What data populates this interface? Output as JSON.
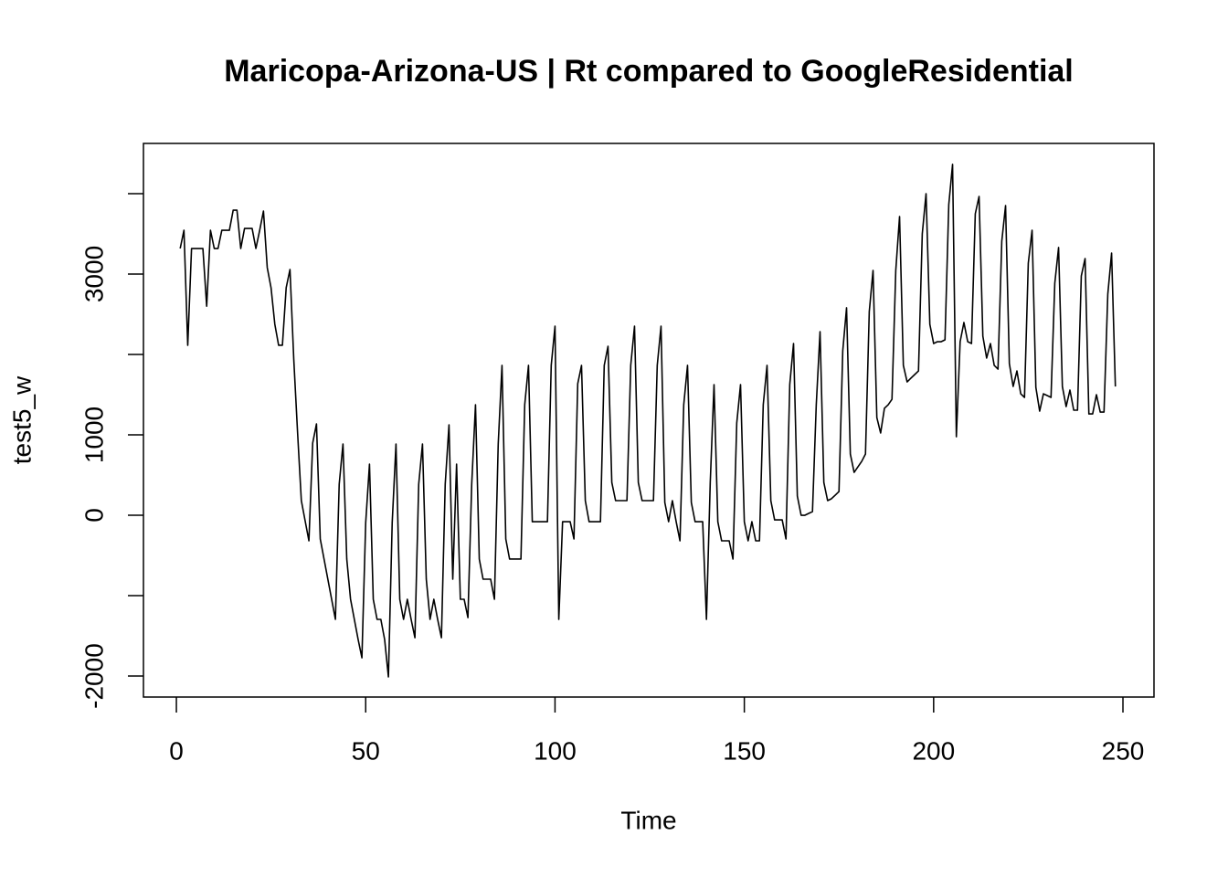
{
  "chart_data": {
    "type": "line",
    "title": "Maricopa-Arizona-US | Rt compared to GoogleResidential",
    "x_label": "Time",
    "y_label": "test5_w",
    "xlim": [
      -8.7,
      258.2
    ],
    "ylim": [
      -2261,
      4625
    ],
    "xticks": [
      0,
      50,
      100,
      150,
      200,
      250
    ],
    "yticks": [
      -2000,
      0,
      1000,
      3000
    ],
    "yticks_unlabeled": [
      -1000,
      2000,
      4000
    ],
    "color": "#000000",
    "x": [
      1,
      2,
      3,
      4,
      5,
      6,
      7,
      8,
      9,
      10,
      11,
      12,
      13,
      14,
      15,
      16,
      17,
      18,
      19,
      20,
      21,
      22,
      23,
      24,
      25,
      26,
      27,
      28,
      29,
      30,
      31,
      32,
      33,
      34,
      35,
      36,
      37,
      38,
      39,
      40,
      41,
      42,
      43,
      44,
      45,
      46,
      47,
      48,
      49,
      50,
      51,
      52,
      53,
      54,
      55,
      56,
      57,
      58,
      59,
      60,
      61,
      62,
      63,
      64,
      65,
      66,
      67,
      68,
      69,
      70,
      71,
      72,
      73,
      74,
      75,
      76,
      77,
      78,
      79,
      80,
      81,
      82,
      83,
      84,
      85,
      86,
      87,
      88,
      89,
      90,
      91,
      92,
      93,
      94,
      95,
      96,
      97,
      98,
      99,
      100,
      101,
      102,
      103,
      104,
      105,
      106,
      107,
      108,
      109,
      110,
      111,
      112,
      113,
      114,
      115,
      116,
      117,
      118,
      119,
      120,
      121,
      122,
      123,
      124,
      125,
      126,
      127,
      128,
      129,
      130,
      131,
      132,
      133,
      134,
      135,
      136,
      137,
      138,
      139,
      140,
      141,
      142,
      143,
      144,
      145,
      146,
      147,
      148,
      149,
      150,
      151,
      152,
      153,
      154,
      155,
      156,
      157,
      158,
      159,
      160,
      161,
      162,
      163,
      164,
      165,
      166,
      167,
      168,
      169,
      170,
      171,
      172,
      173,
      174,
      175,
      176,
      177,
      178,
      179,
      180,
      181,
      182,
      183,
      184,
      185,
      186,
      187,
      188,
      189,
      190,
      191,
      192,
      193,
      194,
      195,
      196,
      197,
      198,
      199,
      200,
      201,
      202,
      203,
      204,
      205,
      206,
      207,
      208,
      209,
      210,
      211,
      212,
      213,
      214,
      215,
      216,
      217,
      218,
      219,
      220,
      221,
      222,
      223,
      224,
      225,
      226,
      227,
      228,
      229,
      230,
      231,
      232,
      233,
      234,
      235,
      236,
      237,
      238,
      239,
      240,
      241,
      242,
      243,
      244,
      245,
      246,
      247,
      248
    ],
    "values": [
      3318,
      3545,
      2114,
      3318,
      3318,
      3318,
      3318,
      2600,
      3545,
      3318,
      3318,
      3545,
      3545,
      3545,
      3795,
      3795,
      3318,
      3568,
      3568,
      3568,
      3318,
      3545,
      3784,
      3080,
      2830,
      2375,
      2114,
      2114,
      2830,
      3057,
      1943,
      1034,
      182,
      -68,
      -318,
      898,
      1136,
      -295,
      -545,
      -795,
      -1045,
      -1295,
      386,
      886,
      -545,
      -1045,
      -1295,
      -1545,
      -1773,
      -91,
      636,
      -1045,
      -1295,
      -1295,
      -1545,
      -2011,
      -91,
      886,
      -1045,
      -1295,
      -1045,
      -1295,
      -1523,
      386,
      886,
      -795,
      -1295,
      -1045,
      -1295,
      -1523,
      386,
      1125,
      -795,
      636,
      -1045,
      -1045,
      -1273,
      386,
      1375,
      -545,
      -795,
      -795,
      -795,
      -1045,
      886,
      1864,
      -295,
      -545,
      -545,
      -545,
      -545,
      1375,
      1864,
      -80,
      -80,
      -80,
      -80,
      -80,
      1864,
      2352,
      -1295,
      -80,
      -80,
      -80,
      -295,
      1636,
      1864,
      182,
      -80,
      -80,
      -80,
      -80,
      1864,
      2102,
      409,
      182,
      182,
      182,
      182,
      1864,
      2352,
      409,
      182,
      182,
      182,
      182,
      1864,
      2352,
      159,
      -80,
      182,
      -80,
      -318,
      1375,
      1864,
      159,
      -80,
      -80,
      -80,
      -1295,
      409,
      1625,
      -80,
      -318,
      -318,
      -318,
      -545,
      1148,
      1625,
      -80,
      -318,
      -80,
      -318,
      -318,
      1375,
      1864,
      182,
      -57,
      -57,
      -57,
      -295,
      1625,
      2136,
      239,
      0,
      0,
      23,
      45,
      1375,
      2284,
      409,
      182,
      205,
      250,
      295,
      2045,
      2580,
      761,
      534,
      602,
      670,
      761,
      2534,
      3045,
      1216,
      1023,
      1330,
      1375,
      1443,
      3045,
      3716,
      1864,
      1659,
      1705,
      1750,
      1795,
      3500,
      4000,
      2375,
      2136,
      2159,
      2159,
      2182,
      3864,
      4364,
      977,
      2159,
      2398,
      2159,
      2136,
      3750,
      3966,
      2227,
      1955,
      2136,
      1864,
      1818,
      3409,
      3852,
      1886,
      1602,
      1795,
      1511,
      1466,
      3136,
      3545,
      1591,
      1295,
      1511,
      1489,
      1466,
      2886,
      3330,
      1602,
      1352,
      1557,
      1307,
      1307,
      2977,
      3193,
      1261,
      1261,
      1500,
      1284,
      1284,
      2750,
      3261,
      1602
    ]
  }
}
